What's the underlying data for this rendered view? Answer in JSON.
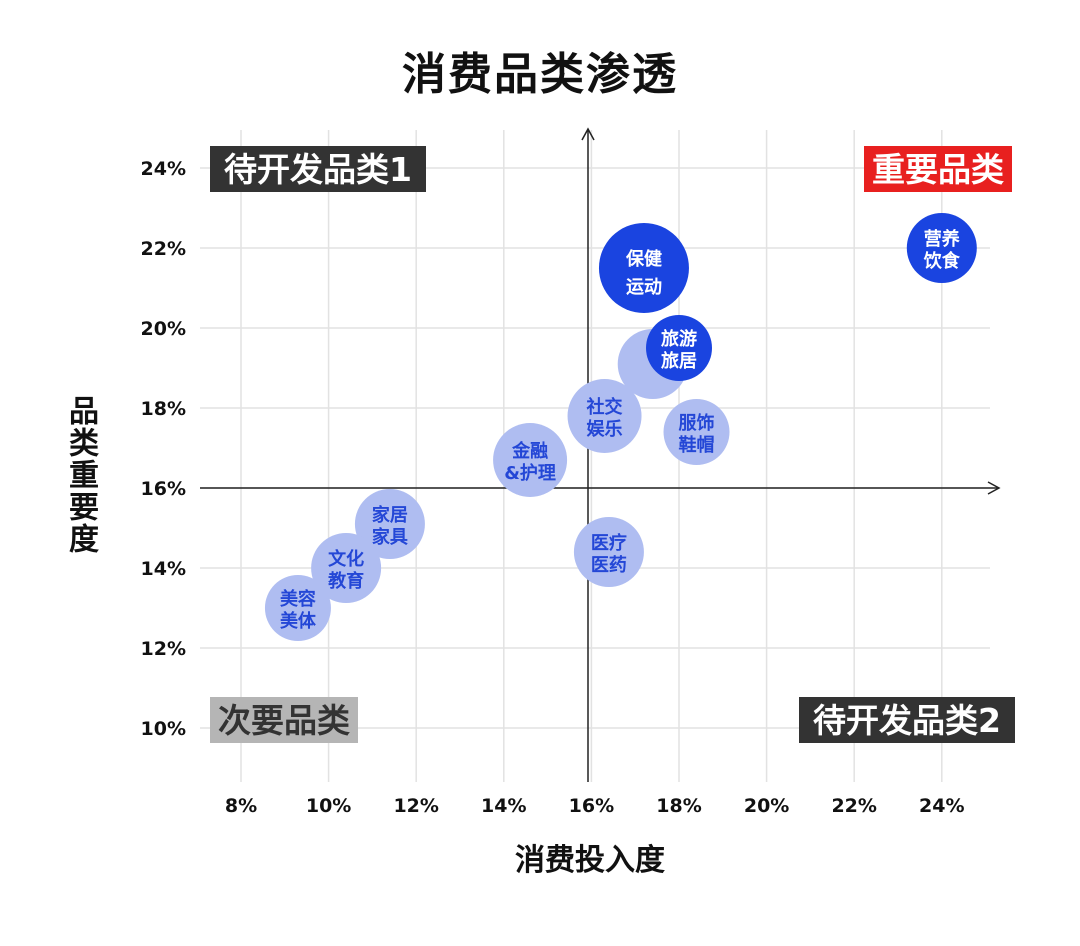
{
  "chart_data": {
    "type": "scatter",
    "title": "消费品类渗透",
    "xlabel": "消费投入度",
    "ylabel": "品类重要度",
    "xlim": [
      7,
      25.5
    ],
    "ylim": [
      8.7,
      25.5
    ],
    "xticks": [
      "8%",
      "10%",
      "12%",
      "14%",
      "16%",
      "18%",
      "20%",
      "22%",
      "24%"
    ],
    "xtick_values": [
      8,
      10,
      12,
      14,
      16,
      18,
      20,
      22,
      24
    ],
    "yticks": [
      "24%",
      "22%",
      "20%",
      "18%",
      "16%",
      "14%",
      "12%",
      "10%"
    ],
    "ytick_values": [
      24,
      22,
      20,
      18,
      16,
      14,
      12,
      10
    ],
    "grid": true,
    "axis_cross": {
      "x": 16,
      "y": 16
    },
    "quadrants": [
      {
        "label": "待开发品类1",
        "position": "top-left",
        "bg": "#333333",
        "color": "#ffffff"
      },
      {
        "label": "重要品类",
        "position": "top-right",
        "bg": "#e8201f",
        "color": "#ffffff"
      },
      {
        "label": "次要品类",
        "position": "bottom-left",
        "bg": "#b5b5b5",
        "color": "#333333"
      },
      {
        "label": "待开发品类2",
        "position": "bottom-right",
        "bg": "#333333",
        "color": "#ffffff"
      }
    ],
    "colors": {
      "highlight": "#1a44e0",
      "normal": "#afbdf1",
      "normal_text": "#2447d6"
    },
    "points": [
      {
        "line1": "旅游",
        "line2": "旅居",
        "x": 17.4,
        "y": 19.1,
        "size": 35,
        "style": "normal",
        "label_hidden": true
      },
      {
        "line1": "保健",
        "line2": "运动",
        "x": 17.2,
        "y": 21.5,
        "size": 45,
        "style": "highlight"
      },
      {
        "line1": "营养",
        "line2": "饮食",
        "x": 24.0,
        "y": 22.0,
        "size": 35,
        "style": "highlight"
      },
      {
        "line1": "旅游",
        "line2": "旅居",
        "x": 18.0,
        "y": 19.5,
        "size": 33,
        "style": "highlight"
      },
      {
        "line1": "社交",
        "line2": "娱乐",
        "x": 16.3,
        "y": 17.8,
        "size": 37,
        "style": "normal"
      },
      {
        "line1": "服饰",
        "line2": "鞋帽",
        "x": 18.4,
        "y": 17.4,
        "size": 33,
        "style": "normal"
      },
      {
        "line1": "金融",
        "line2": "&护理",
        "x": 14.6,
        "y": 16.7,
        "size": 37,
        "style": "normal"
      },
      {
        "line1": "医疗",
        "line2": "医药",
        "x": 16.4,
        "y": 14.4,
        "size": 35,
        "style": "normal"
      },
      {
        "line1": "家居",
        "line2": "家具",
        "x": 11.4,
        "y": 15.1,
        "size": 35,
        "style": "normal"
      },
      {
        "line1": "文化",
        "line2": "教育",
        "x": 10.4,
        "y": 14.0,
        "size": 35,
        "style": "normal"
      },
      {
        "line1": "美容",
        "line2": "美体",
        "x": 9.3,
        "y": 13.0,
        "size": 33,
        "style": "normal"
      }
    ]
  }
}
